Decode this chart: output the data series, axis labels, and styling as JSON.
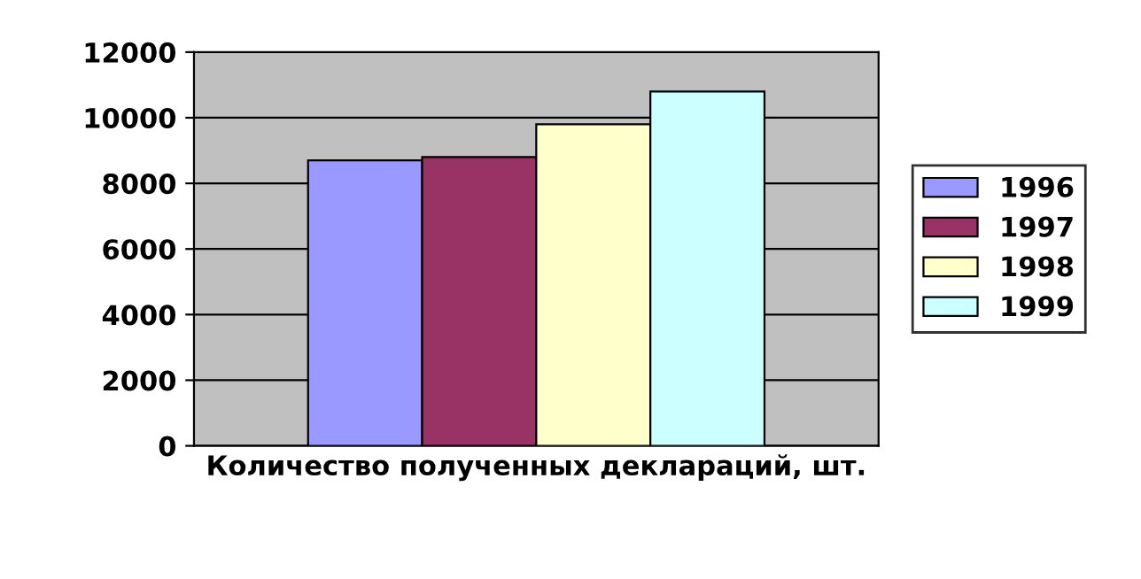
{
  "chart_data": {
    "type": "bar",
    "categories": [
      "Количество полученных деклараций, шт."
    ],
    "series": [
      {
        "name": "1996",
        "color": "#9999ff",
        "values": [
          8700
        ]
      },
      {
        "name": "1997",
        "color": "#993366",
        "values": [
          8800
        ]
      },
      {
        "name": "1998",
        "color": "#ffffcc",
        "values": [
          9800
        ]
      },
      {
        "name": "1999",
        "color": "#ccffff",
        "values": [
          10800
        ]
      }
    ],
    "ylim": [
      0,
      12000
    ],
    "yticks": [
      0,
      2000,
      4000,
      6000,
      8000,
      10000,
      12000
    ],
    "grid": "y",
    "legend": "right"
  }
}
